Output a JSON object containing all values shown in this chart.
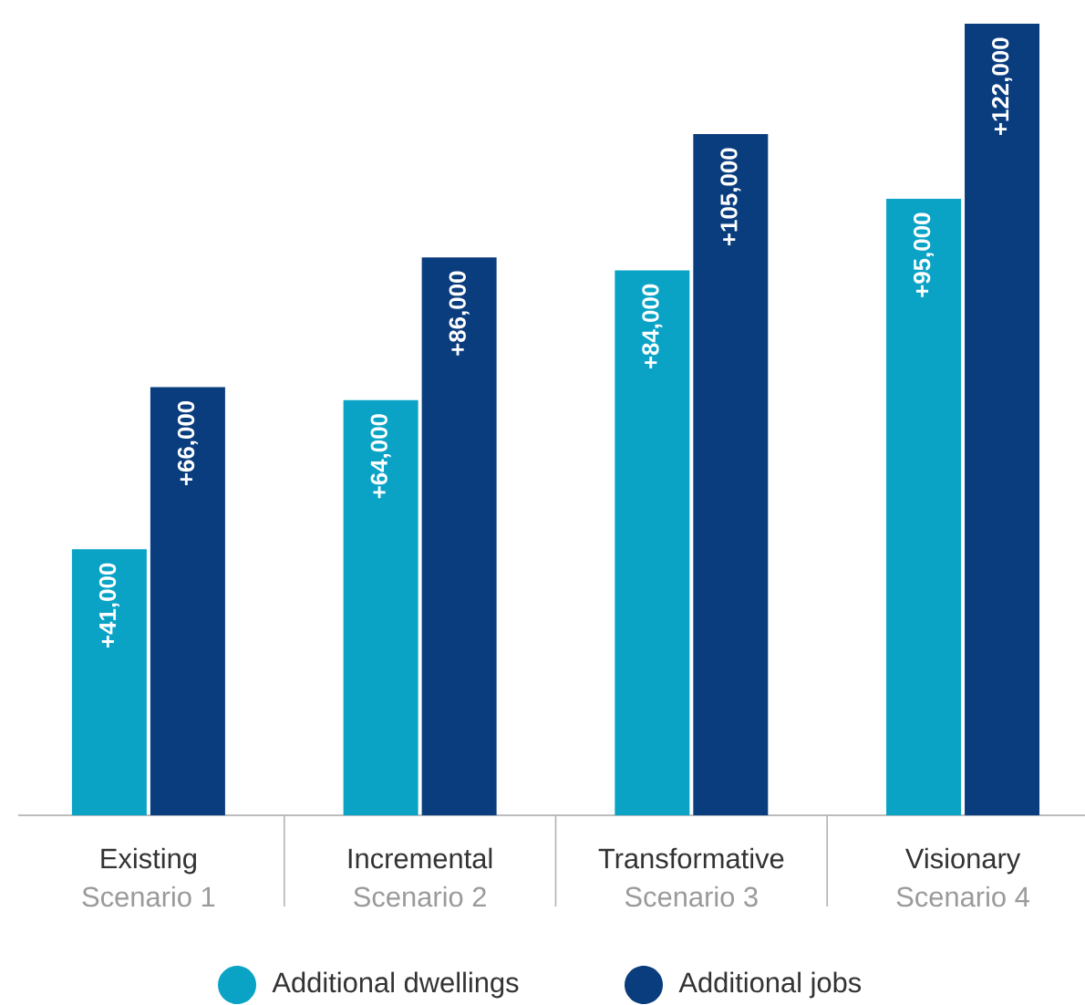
{
  "chart_data": {
    "type": "bar",
    "categories": [
      "Existing",
      "Incremental",
      "Transformative",
      "Visionary"
    ],
    "annotations": [
      "Scenario 1",
      "Scenario 2",
      "Scenario 3",
      "Scenario 4"
    ],
    "series": [
      {
        "name": "Additional dwellings",
        "color": "#0aa3c6",
        "values": [
          41000,
          64000,
          84000,
          95000
        ],
        "value_labels": [
          "+41,000",
          "+64,000",
          "+84,000",
          "+95,000"
        ]
      },
      {
        "name": "Additional jobs",
        "color": "#0a3d7e",
        "values": [
          66000,
          86000,
          105000,
          122000
        ],
        "value_labels": [
          "+66,000",
          "+86,000",
          "+105,000",
          "+122,000"
        ]
      }
    ],
    "legend": "bottom"
  }
}
